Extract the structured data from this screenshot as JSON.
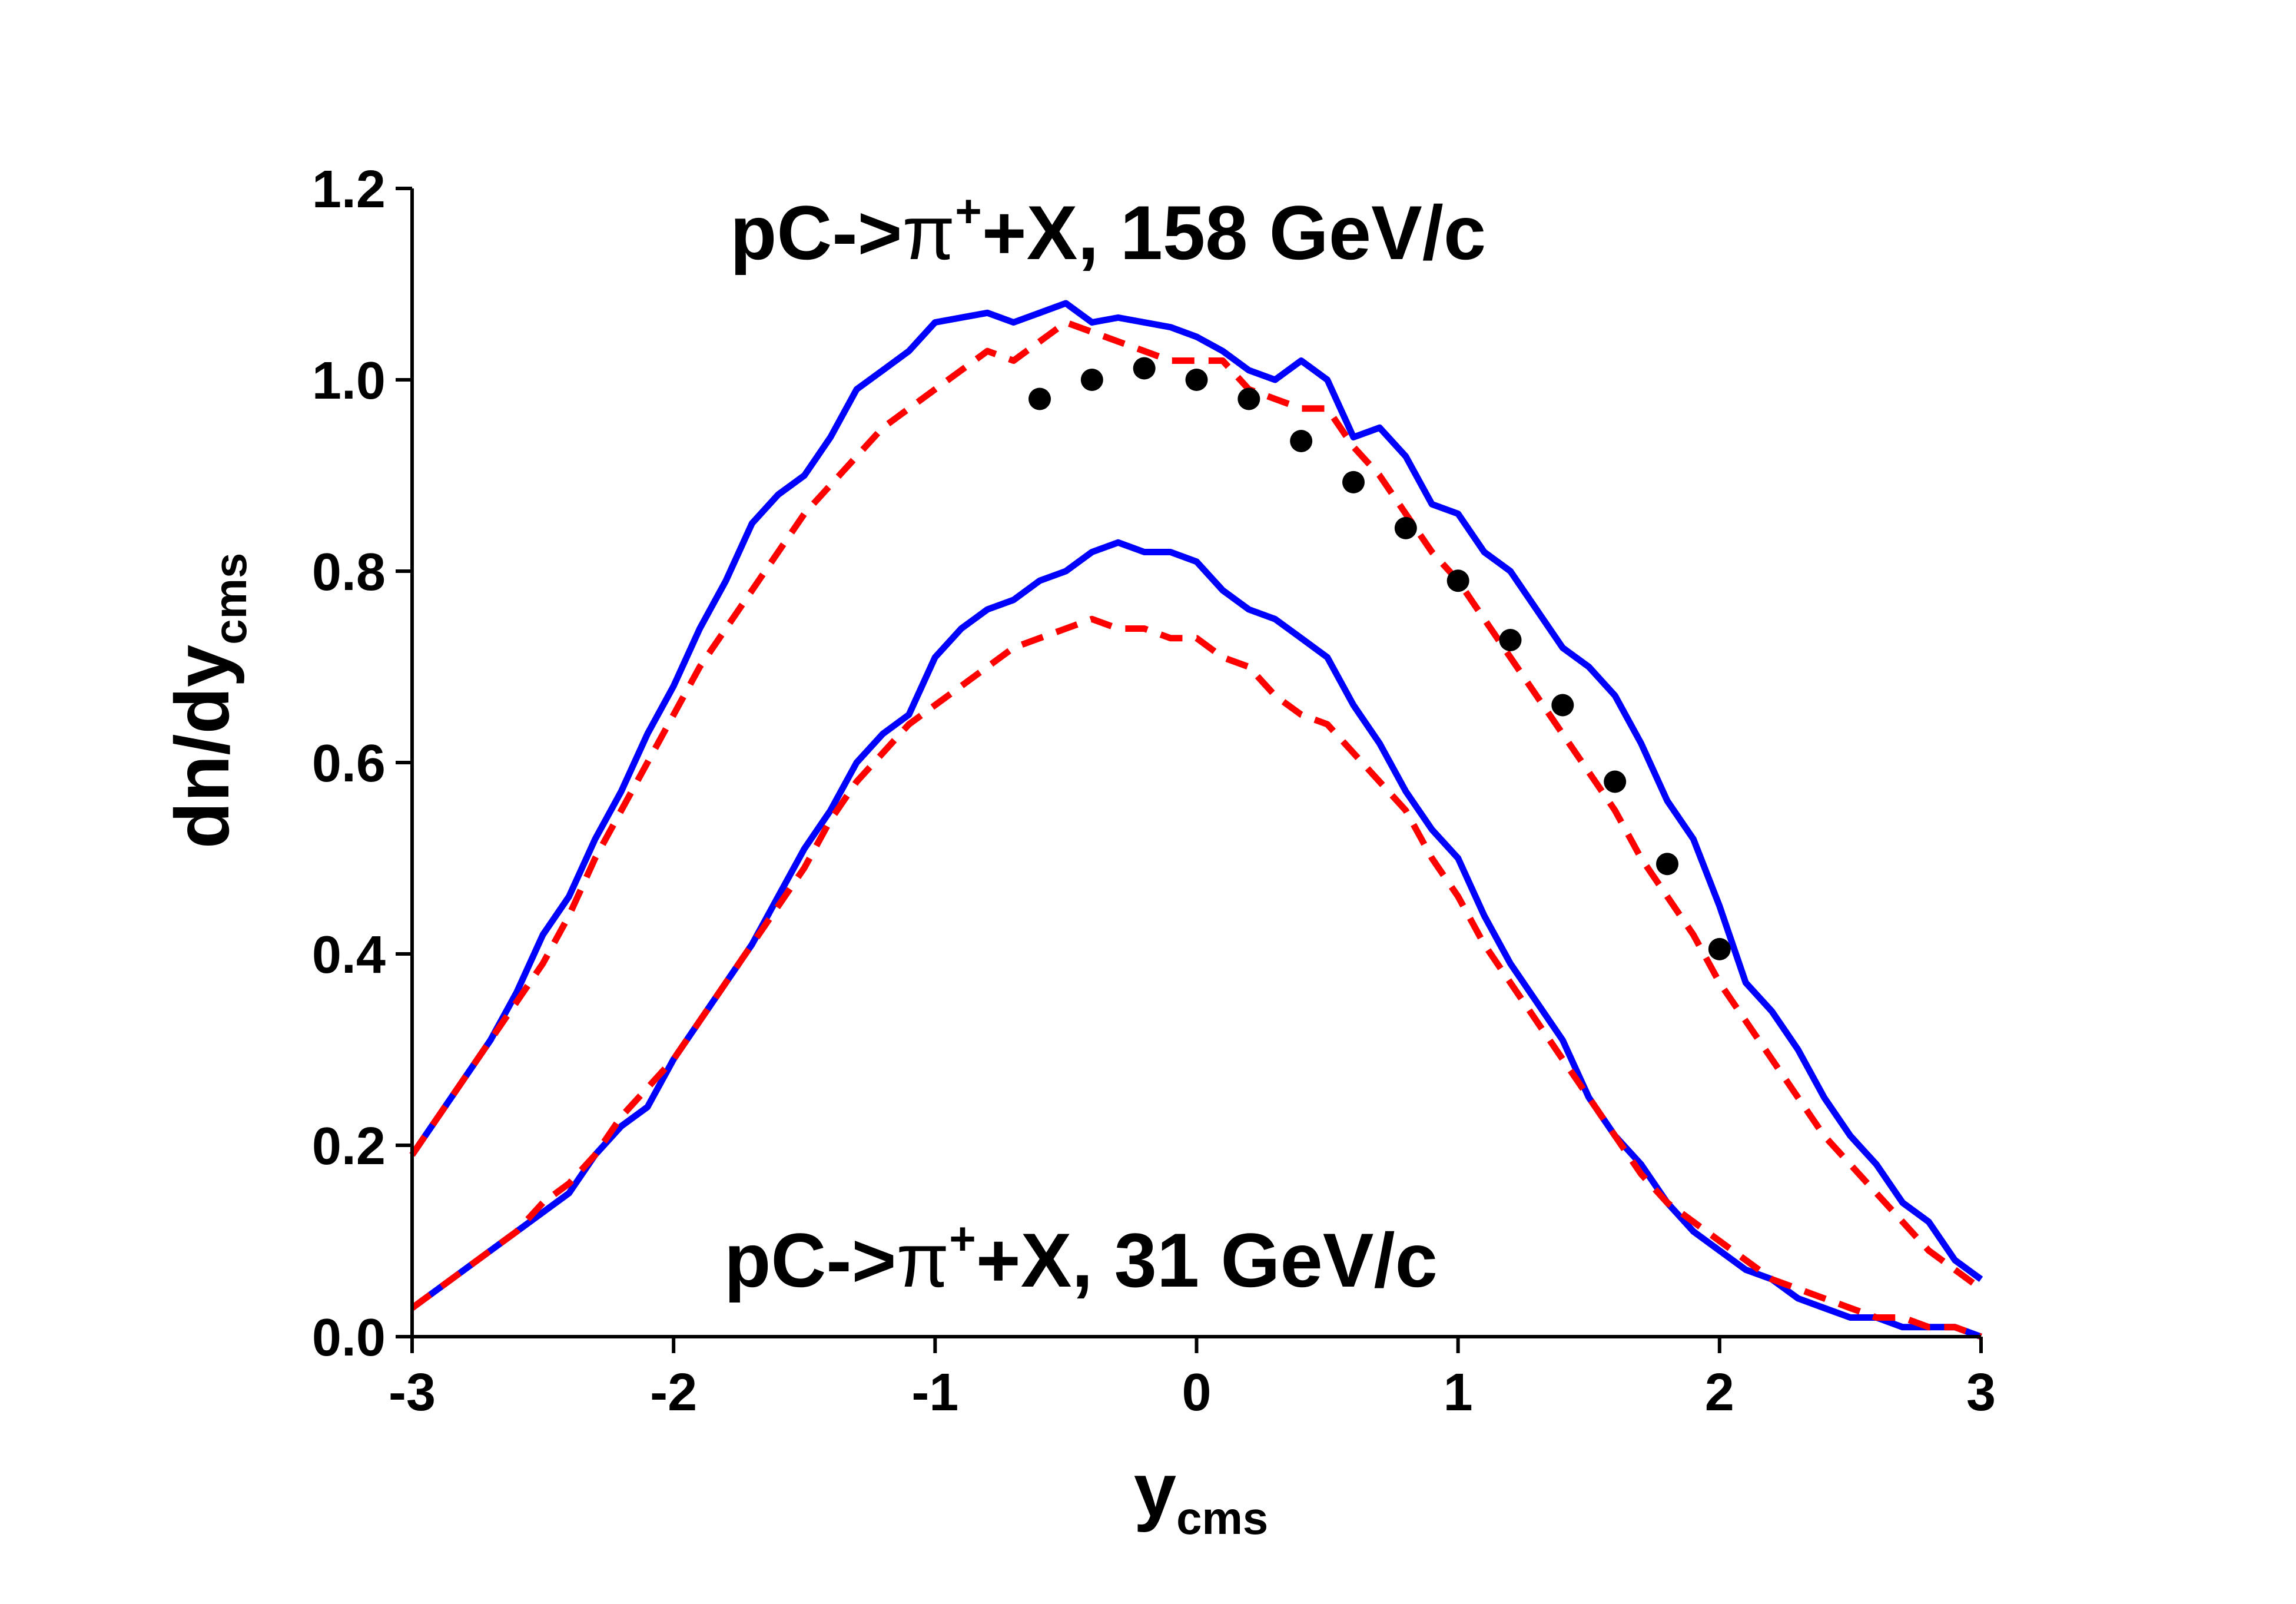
{
  "chart_data": {
    "type": "line",
    "title": "",
    "xlabel": "y",
    "xlabel_sub": "cms",
    "ylabel": "dn/dy",
    "ylabel_sub": "cms",
    "xlim": [
      -3,
      3
    ],
    "ylim": [
      0,
      1.2
    ],
    "xticks": [
      -3,
      -2,
      -1,
      0,
      1,
      2,
      3
    ],
    "xtick_labels": [
      "-3",
      "-2",
      "-1",
      "0",
      "1",
      "2",
      "3"
    ],
    "yticks": [
      0,
      0.2,
      0.4,
      0.6,
      0.8,
      1.0,
      1.2
    ],
    "ytick_labels": [
      "0.0",
      "0.2",
      "0.4",
      "0.6",
      "0.8",
      "1.0",
      "1.2"
    ],
    "grid": false,
    "annotations": [
      {
        "name": "annotation-158",
        "prefix": "pC->",
        "symbol": "π",
        "sup": "+",
        "suffix": "+X, 158 GeV/c"
      },
      {
        "name": "annotation-31",
        "prefix": "pC->",
        "symbol": "π",
        "sup": "+",
        "suffix": "+X, 31 GeV/c"
      }
    ],
    "series": [
      {
        "name": "158 GeV/c solid (blue)",
        "style": "solid",
        "color": "#0000ff",
        "x": [
          -3.0,
          -2.9,
          -2.8,
          -2.7,
          -2.6,
          -2.5,
          -2.4,
          -2.3,
          -2.2,
          -2.1,
          -2.0,
          -1.9,
          -1.8,
          -1.7,
          -1.6,
          -1.5,
          -1.4,
          -1.3,
          -1.2,
          -1.1,
          -1.0,
          -0.9,
          -0.8,
          -0.7,
          -0.6,
          -0.5,
          -0.4,
          -0.3,
          -0.2,
          -0.1,
          0.0,
          0.1,
          0.2,
          0.3,
          0.4,
          0.5,
          0.6,
          0.7,
          0.8,
          0.9,
          1.0,
          1.1,
          1.2,
          1.3,
          1.4,
          1.5,
          1.6,
          1.7,
          1.8,
          1.9,
          2.0,
          2.1,
          2.2,
          2.3,
          2.4,
          2.5,
          2.6,
          2.7,
          2.8,
          2.9,
          3.0
        ],
        "y": [
          0.19,
          0.23,
          0.27,
          0.31,
          0.36,
          0.42,
          0.46,
          0.52,
          0.57,
          0.63,
          0.68,
          0.74,
          0.79,
          0.85,
          0.88,
          0.9,
          0.94,
          0.99,
          1.01,
          1.03,
          1.06,
          1.065,
          1.07,
          1.06,
          1.07,
          1.08,
          1.06,
          1.065,
          1.06,
          1.055,
          1.045,
          1.03,
          1.01,
          1.0,
          1.02,
          1.0,
          0.94,
          0.95,
          0.92,
          0.87,
          0.86,
          0.82,
          0.8,
          0.76,
          0.72,
          0.7,
          0.67,
          0.62,
          0.56,
          0.52,
          0.45,
          0.37,
          0.34,
          0.3,
          0.25,
          0.21,
          0.18,
          0.14,
          0.12,
          0.08,
          0.06
        ]
      },
      {
        "name": "158 GeV/c dashed (red)",
        "style": "dashed",
        "color": "#ff0000",
        "x": [
          -3.0,
          -2.9,
          -2.8,
          -2.7,
          -2.6,
          -2.5,
          -2.4,
          -2.3,
          -2.2,
          -2.1,
          -2.0,
          -1.9,
          -1.8,
          -1.7,
          -1.6,
          -1.5,
          -1.4,
          -1.3,
          -1.2,
          -1.1,
          -1.0,
          -0.9,
          -0.8,
          -0.7,
          -0.6,
          -0.5,
          -0.4,
          -0.3,
          -0.2,
          -0.1,
          0.0,
          0.1,
          0.2,
          0.3,
          0.4,
          0.5,
          0.6,
          0.7,
          0.8,
          0.9,
          1.0,
          1.1,
          1.2,
          1.3,
          1.4,
          1.5,
          1.6,
          1.7,
          1.8,
          1.9,
          2.0,
          2.1,
          2.2,
          2.3,
          2.4,
          2.5,
          2.6,
          2.7,
          2.8,
          2.9,
          3.0
        ],
        "y": [
          0.19,
          0.23,
          0.27,
          0.31,
          0.35,
          0.39,
          0.44,
          0.5,
          0.55,
          0.6,
          0.65,
          0.7,
          0.74,
          0.78,
          0.82,
          0.86,
          0.89,
          0.92,
          0.95,
          0.97,
          0.99,
          1.01,
          1.03,
          1.02,
          1.04,
          1.06,
          1.05,
          1.04,
          1.03,
          1.02,
          1.02,
          1.02,
          0.99,
          0.98,
          0.97,
          0.97,
          0.93,
          0.9,
          0.86,
          0.82,
          0.79,
          0.75,
          0.71,
          0.67,
          0.63,
          0.59,
          0.55,
          0.5,
          0.46,
          0.42,
          0.37,
          0.33,
          0.29,
          0.25,
          0.21,
          0.18,
          0.15,
          0.12,
          0.09,
          0.07,
          0.05
        ]
      },
      {
        "name": "31 GeV/c solid (blue)",
        "style": "solid",
        "color": "#0000ff",
        "x": [
          -3.0,
          -2.9,
          -2.8,
          -2.7,
          -2.6,
          -2.5,
          -2.4,
          -2.3,
          -2.2,
          -2.1,
          -2.0,
          -1.9,
          -1.8,
          -1.7,
          -1.6,
          -1.5,
          -1.4,
          -1.3,
          -1.2,
          -1.1,
          -1.0,
          -0.9,
          -0.8,
          -0.7,
          -0.6,
          -0.5,
          -0.4,
          -0.3,
          -0.2,
          -0.1,
          0.0,
          0.1,
          0.2,
          0.3,
          0.4,
          0.5,
          0.6,
          0.7,
          0.8,
          0.9,
          1.0,
          1.1,
          1.2,
          1.3,
          1.4,
          1.5,
          1.6,
          1.7,
          1.8,
          1.9,
          2.0,
          2.1,
          2.2,
          2.3,
          2.4,
          2.5,
          2.6,
          2.7,
          2.8,
          2.9,
          3.0
        ],
        "y": [
          0.03,
          0.05,
          0.07,
          0.09,
          0.11,
          0.13,
          0.15,
          0.19,
          0.22,
          0.24,
          0.29,
          0.33,
          0.37,
          0.41,
          0.46,
          0.51,
          0.55,
          0.6,
          0.63,
          0.65,
          0.71,
          0.74,
          0.76,
          0.77,
          0.79,
          0.8,
          0.82,
          0.83,
          0.82,
          0.82,
          0.81,
          0.78,
          0.76,
          0.75,
          0.73,
          0.71,
          0.66,
          0.62,
          0.57,
          0.53,
          0.5,
          0.44,
          0.39,
          0.35,
          0.31,
          0.25,
          0.21,
          0.18,
          0.14,
          0.11,
          0.09,
          0.07,
          0.06,
          0.04,
          0.03,
          0.02,
          0.02,
          0.01,
          0.01,
          0.01,
          0.0
        ]
      },
      {
        "name": "31 GeV/c dashed (red)",
        "style": "dashed",
        "color": "#ff0000",
        "x": [
          -3.0,
          -2.9,
          -2.8,
          -2.7,
          -2.6,
          -2.5,
          -2.4,
          -2.3,
          -2.2,
          -2.1,
          -2.0,
          -1.9,
          -1.8,
          -1.7,
          -1.6,
          -1.5,
          -1.4,
          -1.3,
          -1.2,
          -1.1,
          -1.0,
          -0.9,
          -0.8,
          -0.7,
          -0.6,
          -0.5,
          -0.4,
          -0.3,
          -0.2,
          -0.1,
          0.0,
          0.1,
          0.2,
          0.3,
          0.4,
          0.5,
          0.6,
          0.7,
          0.8,
          0.9,
          1.0,
          1.1,
          1.2,
          1.3,
          1.4,
          1.5,
          1.6,
          1.7,
          1.8,
          1.9,
          2.0,
          2.1,
          2.2,
          2.3,
          2.4,
          2.5,
          2.6,
          2.7,
          2.8,
          2.9,
          3.0
        ],
        "y": [
          0.03,
          0.05,
          0.07,
          0.09,
          0.11,
          0.14,
          0.16,
          0.19,
          0.23,
          0.26,
          0.29,
          0.33,
          0.37,
          0.41,
          0.45,
          0.49,
          0.54,
          0.58,
          0.61,
          0.64,
          0.66,
          0.68,
          0.7,
          0.72,
          0.73,
          0.74,
          0.75,
          0.74,
          0.74,
          0.73,
          0.73,
          0.71,
          0.7,
          0.67,
          0.65,
          0.64,
          0.61,
          0.58,
          0.55,
          0.5,
          0.46,
          0.41,
          0.37,
          0.33,
          0.29,
          0.25,
          0.21,
          0.17,
          0.14,
          0.12,
          0.1,
          0.08,
          0.06,
          0.05,
          0.04,
          0.03,
          0.02,
          0.02,
          0.01,
          0.01,
          0.0
        ]
      },
      {
        "name": "158 GeV/c data points",
        "style": "points",
        "color": "#000000",
        "x": [
          -0.6,
          -0.4,
          -0.2,
          0.0,
          0.2,
          0.4,
          0.6,
          0.8,
          1.0,
          1.2,
          1.4,
          1.6,
          1.8,
          2.0
        ],
        "y": [
          0.98,
          1.0,
          1.012,
          1.0,
          0.98,
          0.936,
          0.893,
          0.845,
          0.79,
          0.728,
          0.66,
          0.58,
          0.494,
          0.405
        ]
      }
    ]
  }
}
